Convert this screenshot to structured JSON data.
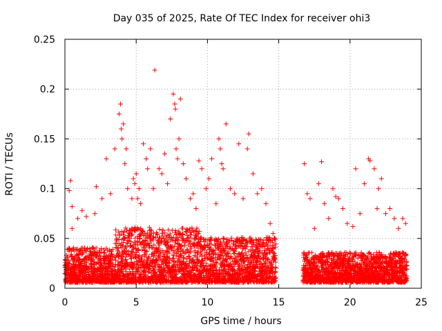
{
  "chart_data": {
    "type": "scatter",
    "title": "Day 035 of 2025, Rate Of TEC Index for receiver ohi3",
    "xlabel": "GPS time / hours",
    "ylabel": "ROTI / TECUs",
    "xlim": [
      0,
      25
    ],
    "ylim": [
      0,
      0.25
    ],
    "x_ticks": [
      "0",
      "5",
      "10",
      "15",
      "20",
      "25"
    ],
    "y_ticks": [
      "0",
      "0.05",
      "0.1",
      "0.15",
      "0.2",
      "0.25"
    ],
    "grid": true,
    "legend": "none",
    "marker": "plus",
    "color": "#ff0000",
    "series": [
      {
        "x": [
          0.3,
          0.4,
          0.5,
          0.5,
          0.9,
          1.2,
          1.5,
          2.1,
          2.2,
          2.6,
          2.9,
          3.2,
          3.5,
          3.8,
          3.9,
          3.95,
          4.0,
          4.1,
          4.2,
          4.3,
          4.4,
          4.7,
          4.8,
          4.9,
          5.0,
          5.1,
          5.2,
          5.3,
          5.5,
          5.7,
          5.8,
          6.0,
          6.2,
          6.3,
          6.6,
          6.8,
          7.0,
          7.2,
          7.4,
          7.6,
          7.7,
          7.75,
          7.8,
          7.9,
          8.0,
          8.1,
          8.3,
          8.5,
          8.8,
          9.0,
          9.2,
          9.4,
          9.6,
          9.9,
          10.1,
          10.3,
          10.6,
          10.8,
          10.9,
          11.0,
          11.1,
          11.3,
          11.6,
          11.9,
          12.2,
          12.5,
          12.8,
          12.9,
          13.2,
          13.5,
          13.8,
          14.1,
          14.4,
          14.6,
          16.8,
          17.0,
          17.2,
          17.5,
          17.8,
          18.0,
          18.2,
          18.5,
          18.8,
          19.0,
          19.2,
          19.5,
          19.8,
          20.2,
          20.4,
          20.7,
          21.0,
          21.3,
          21.4,
          21.7,
          21.9,
          22.0,
          22.2,
          22.5,
          22.8,
          23.1,
          23.4,
          23.7,
          23.9
        ],
        "y": [
          0.098,
          0.108,
          0.082,
          0.06,
          0.07,
          0.078,
          0.072,
          0.075,
          0.102,
          0.09,
          0.13,
          0.095,
          0.14,
          0.175,
          0.185,
          0.16,
          0.15,
          0.165,
          0.125,
          0.14,
          0.1,
          0.09,
          0.11,
          0.105,
          0.115,
          0.09,
          0.1,
          0.085,
          0.145,
          0.13,
          0.12,
          0.14,
          0.1,
          0.219,
          0.12,
          0.115,
          0.135,
          0.105,
          0.17,
          0.195,
          0.185,
          0.18,
          0.14,
          0.13,
          0.15,
          0.19,
          0.125,
          0.11,
          0.09,
          0.095,
          0.08,
          0.128,
          0.12,
          0.1,
          0.11,
          0.13,
          0.085,
          0.15,
          0.14,
          0.125,
          0.12,
          0.165,
          0.1,
          0.095,
          0.145,
          0.09,
          0.14,
          0.155,
          0.115,
          0.095,
          0.1,
          0.085,
          0.065,
          0.055,
          0.125,
          0.095,
          0.09,
          0.06,
          0.105,
          0.127,
          0.085,
          0.07,
          0.1,
          0.092,
          0.09,
          0.08,
          0.065,
          0.062,
          0.12,
          0.075,
          0.105,
          0.13,
          0.128,
          0.12,
          0.08,
          0.1,
          0.11,
          0.075,
          0.08,
          0.07,
          0.06,
          0.07,
          0.065
        ]
      }
    ]
  }
}
